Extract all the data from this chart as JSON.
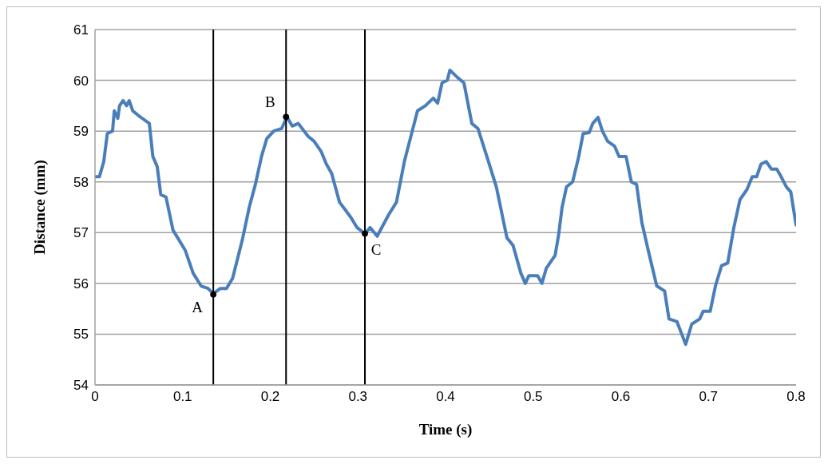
{
  "chart_data": {
    "type": "line",
    "xlabel": "Time (s)",
    "ylabel": "Distance (mm)",
    "xlim": [
      0,
      0.8
    ],
    "xticks": [
      0,
      0.1,
      0.2,
      0.3,
      0.4,
      0.5,
      0.6,
      0.7,
      0.8
    ],
    "ylim": [
      54,
      61
    ],
    "yticks": [
      54,
      55,
      56,
      57,
      58,
      59,
      60,
      61
    ],
    "grid": "y",
    "marker": "none",
    "line_style": "solid",
    "series": [
      {
        "color": "#4a7ebb",
        "x": [
          0,
          0.005,
          0.01,
          0.014,
          0.02,
          0.022,
          0.026,
          0.028,
          0.032,
          0.036,
          0.039,
          0.043,
          0.05,
          0.054,
          0.062,
          0.066,
          0.071,
          0.075,
          0.081,
          0.089,
          0.103,
          0.112,
          0.121,
          0.129,
          0.135,
          0.143,
          0.15,
          0.157,
          0.168,
          0.176,
          0.183,
          0.19,
          0.196,
          0.204,
          0.213,
          0.219,
          0.225,
          0.232,
          0.243,
          0.25,
          0.258,
          0.264,
          0.27,
          0.279,
          0.292,
          0.299,
          0.308,
          0.314,
          0.322,
          0.335,
          0.344,
          0.353,
          0.368,
          0.377,
          0.386,
          0.391,
          0.396,
          0.402,
          0.405,
          0.414,
          0.421,
          0.43,
          0.437,
          0.449,
          0.458,
          0.47,
          0.477,
          0.486,
          0.491,
          0.495,
          0.505,
          0.51,
          0.515,
          0.525,
          0.529,
          0.533,
          0.538,
          0.545,
          0.552,
          0.557,
          0.564,
          0.568,
          0.574,
          0.579,
          0.585,
          0.593,
          0.598,
          0.606,
          0.612,
          0.618,
          0.624,
          0.632,
          0.641,
          0.65,
          0.655,
          0.664,
          0.674,
          0.681,
          0.69,
          0.694,
          0.702,
          0.708,
          0.715,
          0.722,
          0.729,
          0.736,
          0.744,
          0.75,
          0.755,
          0.76,
          0.766,
          0.772,
          0.778,
          0.783,
          0.789,
          0.794,
          0.8
        ],
        "values": [
          58.1,
          58.1,
          58.4,
          58.95,
          59.0,
          59.4,
          59.25,
          59.5,
          59.6,
          59.5,
          59.6,
          59.4,
          59.3,
          59.25,
          59.15,
          58.5,
          58.3,
          57.75,
          57.7,
          57.05,
          56.65,
          56.2,
          55.95,
          55.9,
          55.8,
          55.9,
          55.9,
          56.1,
          56.85,
          57.5,
          57.95,
          58.5,
          58.85,
          59.0,
          59.05,
          59.28,
          59.1,
          59.15,
          58.9,
          58.8,
          58.6,
          58.35,
          58.17,
          57.6,
          57.3,
          57.1,
          56.98,
          57.1,
          56.93,
          57.35,
          57.6,
          58.4,
          59.4,
          59.5,
          59.65,
          59.55,
          59.95,
          60.0,
          60.2,
          60.05,
          59.95,
          59.15,
          59.05,
          58.4,
          57.9,
          56.9,
          56.75,
          56.2,
          56.0,
          56.15,
          56.15,
          56.0,
          56.3,
          56.55,
          56.95,
          57.5,
          57.9,
          58.0,
          58.5,
          58.95,
          58.97,
          59.15,
          59.27,
          59.0,
          58.8,
          58.7,
          58.5,
          58.5,
          58.0,
          57.95,
          57.2,
          56.6,
          55.95,
          55.85,
          55.3,
          55.25,
          54.8,
          55.2,
          55.3,
          55.45,
          55.45,
          55.95,
          56.35,
          56.4,
          57.1,
          57.65,
          57.85,
          58.1,
          58.1,
          58.35,
          58.4,
          58.25,
          58.25,
          58.1,
          57.9,
          57.8,
          57.15
        ]
      }
    ],
    "ref_lines": [
      {
        "axis": "x",
        "value": 0.135,
        "color": "#000000"
      },
      {
        "axis": "x",
        "value": 0.218,
        "color": "#000000"
      },
      {
        "axis": "x",
        "value": 0.308,
        "color": "#000000"
      }
    ],
    "annotations": [
      {
        "text": "A",
        "x": 0.135,
        "y": 55.78
      },
      {
        "text": "B",
        "x": 0.218,
        "y": 59.28
      },
      {
        "text": "C",
        "x": 0.308,
        "y": 56.98
      }
    ]
  }
}
